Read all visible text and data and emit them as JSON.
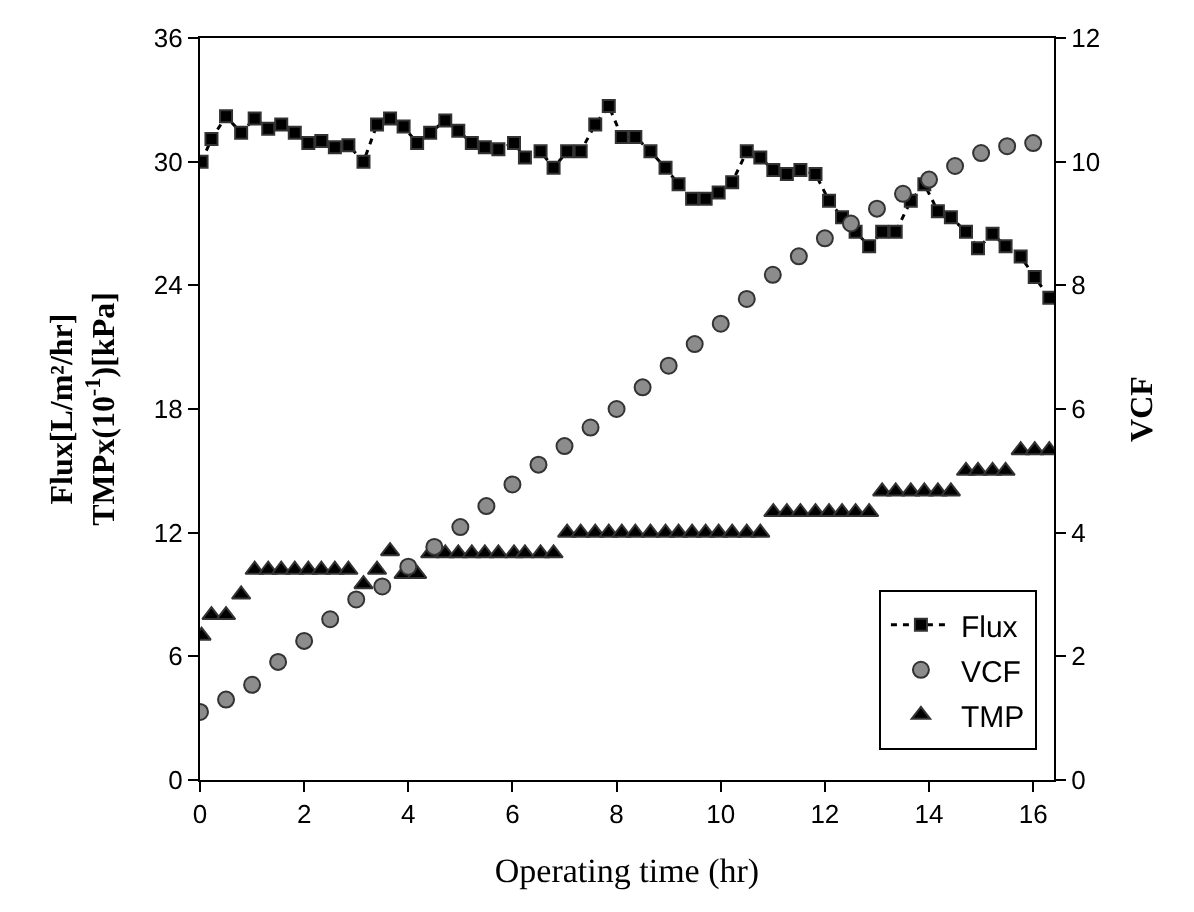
{
  "chart_data": {
    "type": "scatter",
    "xlabel": "Operating time (hr)",
    "ylabel": "Flux[L/m²/hr]\nTMPx(10$^{-1}$)[kPa]",
    "y2label": "VCF",
    "xlim": [
      0,
      16.4
    ],
    "xticks": [
      0,
      2,
      4,
      6,
      8,
      10,
      12,
      14,
      16
    ],
    "ylim": [
      0,
      36
    ],
    "yticks": [
      0,
      6,
      12,
      18,
      24,
      30,
      36
    ],
    "y2lim": [
      0,
      12
    ],
    "y2ticks": [
      0,
      2,
      4,
      6,
      8,
      10,
      12
    ],
    "legend": "bottom right",
    "series": [
      {
        "name": "Flux",
        "type": "line",
        "color": "#000000",
        "marker": "square",
        "line_style": "dotted",
        "x": [
          0.03,
          0.22,
          0.5,
          0.79,
          1.05,
          1.31,
          1.56,
          1.82,
          2.08,
          2.33,
          2.59,
          2.85,
          3.14,
          3.4,
          3.65,
          3.91,
          4.17,
          4.42,
          4.71,
          4.96,
          5.22,
          5.47,
          5.73,
          6.03,
          6.24,
          6.54,
          6.79,
          7.05,
          7.31,
          7.59,
          7.85,
          8.1,
          8.36,
          8.65,
          8.94,
          9.19,
          9.45,
          9.71,
          9.96,
          10.22,
          10.5,
          10.76,
          11.01,
          11.27,
          11.53,
          11.82,
          12.08,
          12.33,
          12.59,
          12.85,
          13.1,
          13.36,
          13.65,
          13.91,
          14.17,
          14.42,
          14.71,
          14.94,
          15.22,
          15.47,
          15.76,
          16.03,
          16.31
        ],
        "values": [
          30.0,
          31.1,
          32.2,
          31.4,
          32.1,
          31.6,
          31.8,
          31.4,
          30.9,
          31.0,
          30.7,
          30.8,
          30.0,
          31.8,
          32.1,
          31.7,
          30.9,
          31.4,
          32.0,
          31.5,
          30.9,
          30.7,
          30.6,
          30.9,
          30.2,
          30.5,
          29.7,
          30.5,
          30.5,
          31.8,
          32.7,
          31.2,
          31.2,
          30.5,
          29.7,
          28.9,
          28.2,
          28.2,
          28.5,
          29.0,
          30.5,
          30.2,
          29.6,
          29.4,
          29.6,
          29.4,
          28.1,
          27.3,
          26.6,
          25.9,
          26.6,
          26.6,
          28.1,
          28.9,
          27.6,
          27.3,
          26.6,
          25.8,
          26.5,
          25.9,
          25.4,
          24.4,
          23.4
        ]
      },
      {
        "name": "VCF",
        "color": "#8c8c8c",
        "marker": "circle",
        "axis": "y2",
        "x": [
          0,
          0.5,
          1,
          1.5,
          2,
          2.5,
          3,
          3.5,
          4,
          4.5,
          5,
          5.5,
          6,
          6.5,
          7,
          7.5,
          8,
          8.5,
          9,
          9.5,
          10,
          10.5,
          11,
          11.5,
          12,
          12.5,
          13,
          13.5,
          14,
          14.5,
          15,
          15.5,
          16
        ],
        "values": [
          1.1,
          1.3,
          1.54,
          1.91,
          2.25,
          2.6,
          2.92,
          3.13,
          3.45,
          3.77,
          4.09,
          4.43,
          4.78,
          5.1,
          5.4,
          5.7,
          6.0,
          6.35,
          6.7,
          7.05,
          7.38,
          7.78,
          8.17,
          8.47,
          8.76,
          9.0,
          9.24,
          9.48,
          9.71,
          9.93,
          10.14,
          10.25,
          10.3
        ]
      },
      {
        "name": "TMP",
        "color": "#000000",
        "marker": "triangle",
        "x": [
          0.03,
          0.22,
          0.5,
          0.79,
          1.05,
          1.31,
          1.56,
          1.82,
          2.08,
          2.33,
          2.59,
          2.85,
          3.14,
          3.4,
          3.65,
          3.91,
          4.17,
          4.42,
          4.71,
          4.96,
          5.22,
          5.47,
          5.73,
          6.03,
          6.24,
          6.54,
          6.79,
          7.05,
          7.31,
          7.59,
          7.85,
          8.1,
          8.36,
          8.65,
          8.94,
          9.19,
          9.45,
          9.71,
          9.96,
          10.22,
          10.5,
          10.76,
          11.01,
          11.27,
          11.53,
          11.82,
          12.08,
          12.33,
          12.59,
          12.85,
          13.1,
          13.36,
          13.65,
          13.91,
          14.17,
          14.42,
          14.71,
          14.94,
          15.22,
          15.47,
          15.76,
          16.03,
          16.31
        ],
        "values": [
          7,
          8,
          8,
          9,
          10.2,
          10.2,
          10.2,
          10.2,
          10.2,
          10.2,
          10.2,
          10.2,
          9.5,
          10.2,
          11.1,
          10,
          10,
          11,
          11,
          11,
          11,
          11,
          11,
          11,
          11,
          11,
          11,
          12,
          12,
          12,
          12,
          12,
          12,
          12,
          12,
          12,
          12,
          12,
          12,
          12,
          12,
          12,
          13,
          13,
          13,
          13,
          13,
          13,
          13,
          13,
          14,
          14,
          14,
          14,
          14,
          14,
          15,
          15,
          15,
          15,
          16,
          16,
          16
        ]
      }
    ]
  }
}
